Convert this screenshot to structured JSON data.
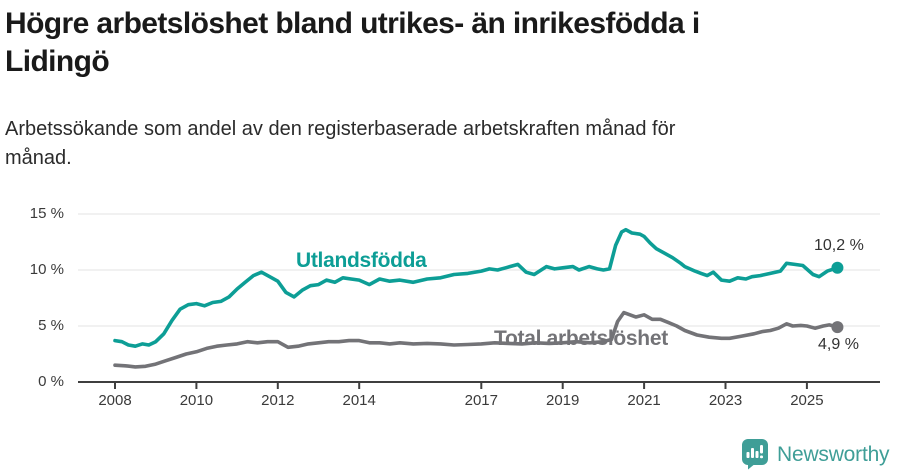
{
  "title": "Högre arbetslöshet bland utrikes- än inrikesfödda i\nLidingö",
  "subtitle": "Arbetssökande som andel av den registerbaserade arbetskraften månad för\nmånad.",
  "branding": {
    "name": "Newsworthy",
    "icon": "newsworthy-speech-bubble-bar-chart-icon",
    "color": "#3f9e97"
  },
  "colors": {
    "foreign_born_line": "#0d9e96",
    "total_line": "#737377",
    "gridline": "#e3e3e3",
    "axis": "#3f3f3f",
    "annotation_text": "#333333"
  },
  "chart_data": {
    "type": "line",
    "title": "Högre arbetslöshet bland utrikes- än inrikesfödda i Lidingö",
    "subtitle": "Arbetssökande som andel av den registerbaserade arbetskraften månad för månad.",
    "xlabel": "",
    "ylabel": "",
    "grid": "horizontal",
    "legend_position": "inline-labels",
    "xlim": [
      2007.1,
      2026.8
    ],
    "ylim": [
      0,
      15
    ],
    "x_ticks": [
      "2008",
      "2010",
      "2012",
      "2014",
      "2017",
      "2019",
      "2021",
      "2023",
      "2025"
    ],
    "y_ticks": [
      {
        "value": 15,
        "label": "15 %"
      },
      {
        "value": 10,
        "label": "10 %"
      },
      {
        "value": 5,
        "label": "5 %"
      },
      {
        "value": 0,
        "label": "0 %"
      }
    ],
    "series": [
      {
        "name": "Utlandsfödda",
        "color": "#0d9e96",
        "end_label": "10,2 %",
        "end_value": 10.2,
        "points": [
          [
            2008.0,
            3.7
          ],
          [
            2008.17,
            3.6
          ],
          [
            2008.33,
            3.3
          ],
          [
            2008.5,
            3.2
          ],
          [
            2008.67,
            3.4
          ],
          [
            2008.83,
            3.3
          ],
          [
            2009.0,
            3.6
          ],
          [
            2009.2,
            4.3
          ],
          [
            2009.4,
            5.5
          ],
          [
            2009.6,
            6.5
          ],
          [
            2009.8,
            6.9
          ],
          [
            2010.0,
            7.0
          ],
          [
            2010.2,
            6.8
          ],
          [
            2010.4,
            7.1
          ],
          [
            2010.6,
            7.2
          ],
          [
            2010.8,
            7.6
          ],
          [
            2011.0,
            8.3
          ],
          [
            2011.2,
            8.9
          ],
          [
            2011.4,
            9.5
          ],
          [
            2011.6,
            9.8
          ],
          [
            2011.8,
            9.4
          ],
          [
            2012.0,
            9.0
          ],
          [
            2012.2,
            8.0
          ],
          [
            2012.4,
            7.6
          ],
          [
            2012.6,
            8.2
          ],
          [
            2012.8,
            8.6
          ],
          [
            2013.0,
            8.7
          ],
          [
            2013.2,
            9.1
          ],
          [
            2013.4,
            8.9
          ],
          [
            2013.6,
            9.3
          ],
          [
            2013.8,
            9.2
          ],
          [
            2014.0,
            9.1
          ],
          [
            2014.25,
            8.7
          ],
          [
            2014.5,
            9.2
          ],
          [
            2014.75,
            9.0
          ],
          [
            2015.0,
            9.1
          ],
          [
            2015.33,
            8.9
          ],
          [
            2015.67,
            9.2
          ],
          [
            2016.0,
            9.3
          ],
          [
            2016.33,
            9.6
          ],
          [
            2016.67,
            9.7
          ],
          [
            2017.0,
            9.9
          ],
          [
            2017.2,
            10.1
          ],
          [
            2017.4,
            10.0
          ],
          [
            2017.6,
            10.2
          ],
          [
            2017.9,
            10.5
          ],
          [
            2018.1,
            9.8
          ],
          [
            2018.3,
            9.6
          ],
          [
            2018.6,
            10.3
          ],
          [
            2018.8,
            10.1
          ],
          [
            2019.0,
            10.2
          ],
          [
            2019.25,
            10.3
          ],
          [
            2019.4,
            10.0
          ],
          [
            2019.65,
            10.3
          ],
          [
            2019.85,
            10.1
          ],
          [
            2020.0,
            10.0
          ],
          [
            2020.15,
            10.1
          ],
          [
            2020.3,
            12.2
          ],
          [
            2020.45,
            13.4
          ],
          [
            2020.55,
            13.6
          ],
          [
            2020.7,
            13.3
          ],
          [
            2020.9,
            13.2
          ],
          [
            2021.0,
            13.0
          ],
          [
            2021.15,
            12.4
          ],
          [
            2021.3,
            11.9
          ],
          [
            2021.5,
            11.5
          ],
          [
            2021.7,
            11.1
          ],
          [
            2021.9,
            10.6
          ],
          [
            2022.0,
            10.3
          ],
          [
            2022.25,
            9.9
          ],
          [
            2022.4,
            9.7
          ],
          [
            2022.55,
            9.5
          ],
          [
            2022.7,
            9.8
          ],
          [
            2022.9,
            9.1
          ],
          [
            2023.1,
            9.0
          ],
          [
            2023.3,
            9.3
          ],
          [
            2023.5,
            9.2
          ],
          [
            2023.65,
            9.4
          ],
          [
            2023.85,
            9.5
          ],
          [
            2024.1,
            9.7
          ],
          [
            2024.35,
            9.9
          ],
          [
            2024.5,
            10.6
          ],
          [
            2024.7,
            10.5
          ],
          [
            2024.9,
            10.4
          ],
          [
            2025.15,
            9.6
          ],
          [
            2025.3,
            9.4
          ],
          [
            2025.5,
            9.9
          ],
          [
            2025.75,
            10.2
          ]
        ]
      },
      {
        "name": "Total arbetslöshet",
        "color": "#737377",
        "end_label": "4,9 %",
        "end_value": 4.9,
        "points": [
          [
            2008.0,
            1.5
          ],
          [
            2008.25,
            1.45
          ],
          [
            2008.5,
            1.35
          ],
          [
            2008.75,
            1.4
          ],
          [
            2009.0,
            1.6
          ],
          [
            2009.25,
            1.9
          ],
          [
            2009.5,
            2.2
          ],
          [
            2009.75,
            2.5
          ],
          [
            2010.0,
            2.7
          ],
          [
            2010.25,
            3.0
          ],
          [
            2010.5,
            3.2
          ],
          [
            2010.75,
            3.3
          ],
          [
            2011.0,
            3.4
          ],
          [
            2011.25,
            3.6
          ],
          [
            2011.5,
            3.5
          ],
          [
            2011.75,
            3.6
          ],
          [
            2012.0,
            3.6
          ],
          [
            2012.25,
            3.1
          ],
          [
            2012.5,
            3.2
          ],
          [
            2012.75,
            3.4
          ],
          [
            2013.0,
            3.5
          ],
          [
            2013.25,
            3.6
          ],
          [
            2013.5,
            3.6
          ],
          [
            2013.75,
            3.7
          ],
          [
            2014.0,
            3.7
          ],
          [
            2014.25,
            3.5
          ],
          [
            2014.5,
            3.5
          ],
          [
            2014.75,
            3.4
          ],
          [
            2015.0,
            3.5
          ],
          [
            2015.33,
            3.4
          ],
          [
            2015.67,
            3.45
          ],
          [
            2016.0,
            3.4
          ],
          [
            2016.33,
            3.3
          ],
          [
            2016.67,
            3.35
          ],
          [
            2017.0,
            3.4
          ],
          [
            2017.33,
            3.5
          ],
          [
            2017.67,
            3.45
          ],
          [
            2018.0,
            3.4
          ],
          [
            2018.33,
            3.5
          ],
          [
            2018.67,
            3.45
          ],
          [
            2019.0,
            3.5
          ],
          [
            2019.33,
            3.6
          ],
          [
            2019.67,
            3.5
          ],
          [
            2020.0,
            3.6
          ],
          [
            2020.2,
            3.8
          ],
          [
            2020.35,
            5.4
          ],
          [
            2020.5,
            6.2
          ],
          [
            2020.65,
            6.0
          ],
          [
            2020.8,
            5.8
          ],
          [
            2021.0,
            6.0
          ],
          [
            2021.2,
            5.6
          ],
          [
            2021.4,
            5.6
          ],
          [
            2021.6,
            5.3
          ],
          [
            2021.8,
            5.0
          ],
          [
            2022.0,
            4.6
          ],
          [
            2022.3,
            4.2
          ],
          [
            2022.6,
            4.0
          ],
          [
            2022.9,
            3.9
          ],
          [
            2023.1,
            3.9
          ],
          [
            2023.4,
            4.1
          ],
          [
            2023.7,
            4.3
          ],
          [
            2023.9,
            4.5
          ],
          [
            2024.1,
            4.6
          ],
          [
            2024.3,
            4.8
          ],
          [
            2024.5,
            5.2
          ],
          [
            2024.65,
            5.0
          ],
          [
            2024.85,
            5.05
          ],
          [
            2025.0,
            5.0
          ],
          [
            2025.2,
            4.8
          ],
          [
            2025.4,
            5.0
          ],
          [
            2025.55,
            5.1
          ],
          [
            2025.75,
            4.9
          ]
        ]
      }
    ]
  }
}
